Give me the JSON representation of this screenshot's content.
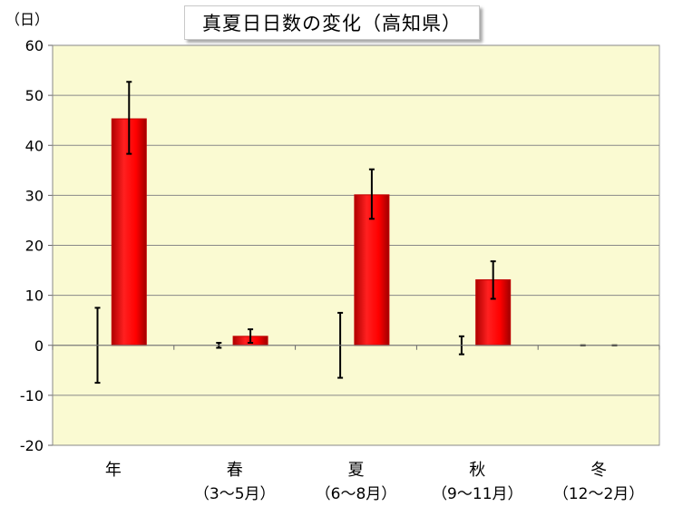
{
  "chart_data": {
    "type": "bar",
    "title": "真夏日日数の変化（高知県）",
    "ylabel": "（日）",
    "ylim": [
      -20,
      60
    ],
    "yticks": [
      -20,
      -10,
      0,
      10,
      20,
      30,
      40,
      50,
      60
    ],
    "grid": true,
    "categories": [
      {
        "line1": "年",
        "line2": ""
      },
      {
        "line1": "春",
        "line2": "（3～5月）"
      },
      {
        "line1": "夏",
        "line2": "（6～8月）"
      },
      {
        "line1": "秋",
        "line2": "（9～11月）"
      },
      {
        "line1": "冬",
        "line2": "（12～2月）"
      }
    ],
    "series": [
      {
        "values": [
          0,
          0,
          0,
          0,
          0
        ],
        "error_low": [
          -7.5,
          -0.5,
          -6.5,
          -1.8,
          0
        ],
        "error_high": [
          7.5,
          0.5,
          6.5,
          1.8,
          0
        ]
      },
      {
        "values": [
          45.3,
          1.8,
          30.1,
          13.1,
          0
        ],
        "error_low": [
          38.3,
          0.5,
          25.3,
          9.3,
          0
        ],
        "error_high": [
          52.7,
          3.2,
          35.2,
          16.8,
          0
        ],
        "color": "#ff0000"
      }
    ],
    "colors": {
      "plot_bg": "#fafad2",
      "grid": "#888888",
      "bar": "#ff0000",
      "bar_dark": "#c00000"
    }
  }
}
